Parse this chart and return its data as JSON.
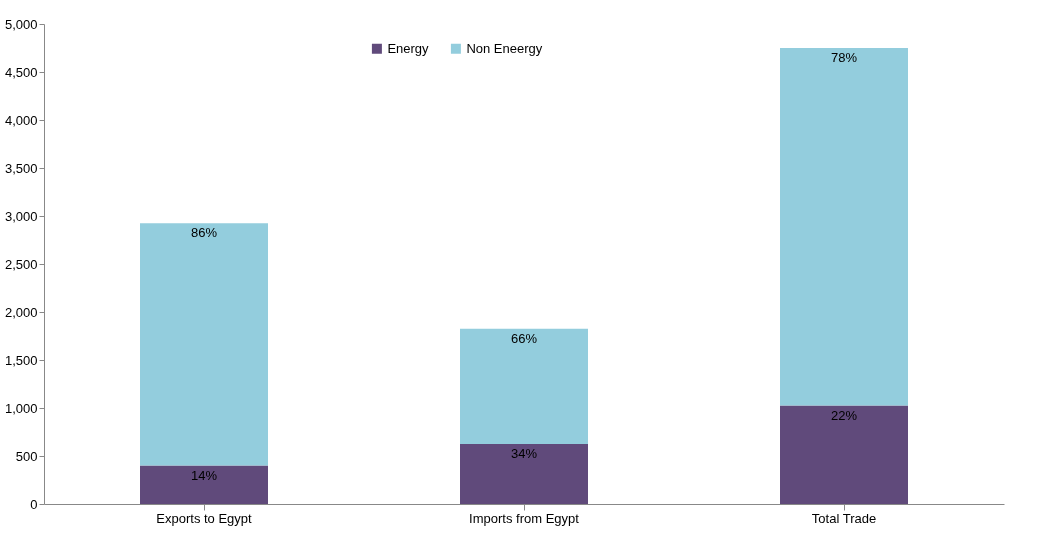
{
  "chart_data": {
    "type": "bar",
    "stacked": true,
    "categories": [
      "Exports to Egypt",
      "Imports from Egypt",
      "Total Trade"
    ],
    "series": [
      {
        "name": "Energy",
        "color": "#604a7b",
        "values": [
          400,
          625,
          1025
        ]
      },
      {
        "name": "Non Eneergy",
        "color": "#93cddd",
        "values": [
          2525,
          1200,
          3725
        ]
      }
    ],
    "annotations": [
      {
        "text": "14%",
        "x": "Exports to Egypt",
        "y": 400
      },
      {
        "text": "86%",
        "x": "Exports to Egypt",
        "y": 2925
      },
      {
        "text": "34%",
        "x": "Imports from Egypt",
        "y": 625
      },
      {
        "text": "66%",
        "x": "Imports from Egypt",
        "y": 1825
      },
      {
        "text": "22%",
        "x": "Total Trade",
        "y": 1025
      },
      {
        "text": "78%",
        "x": "Total Trade",
        "y": 4750
      }
    ],
    "ylim": [
      0,
      5000
    ],
    "yticks": [
      0,
      500,
      {
        "value": 1000,
        "label": "1,000"
      },
      {
        "value": 1500,
        "label": "1,500"
      },
      {
        "value": 2000,
        "label": "2,000"
      },
      {
        "value": 2500,
        "label": "2,500"
      },
      {
        "value": 3000,
        "label": "3,000"
      },
      {
        "value": 3500,
        "label": "3,500"
      },
      {
        "value": 4000,
        "label": "4,000"
      },
      {
        "value": 4500,
        "label": "4,500"
      },
      {
        "value": 5000,
        "label": "5,000"
      }
    ],
    "grid": false,
    "legend": "top"
  }
}
